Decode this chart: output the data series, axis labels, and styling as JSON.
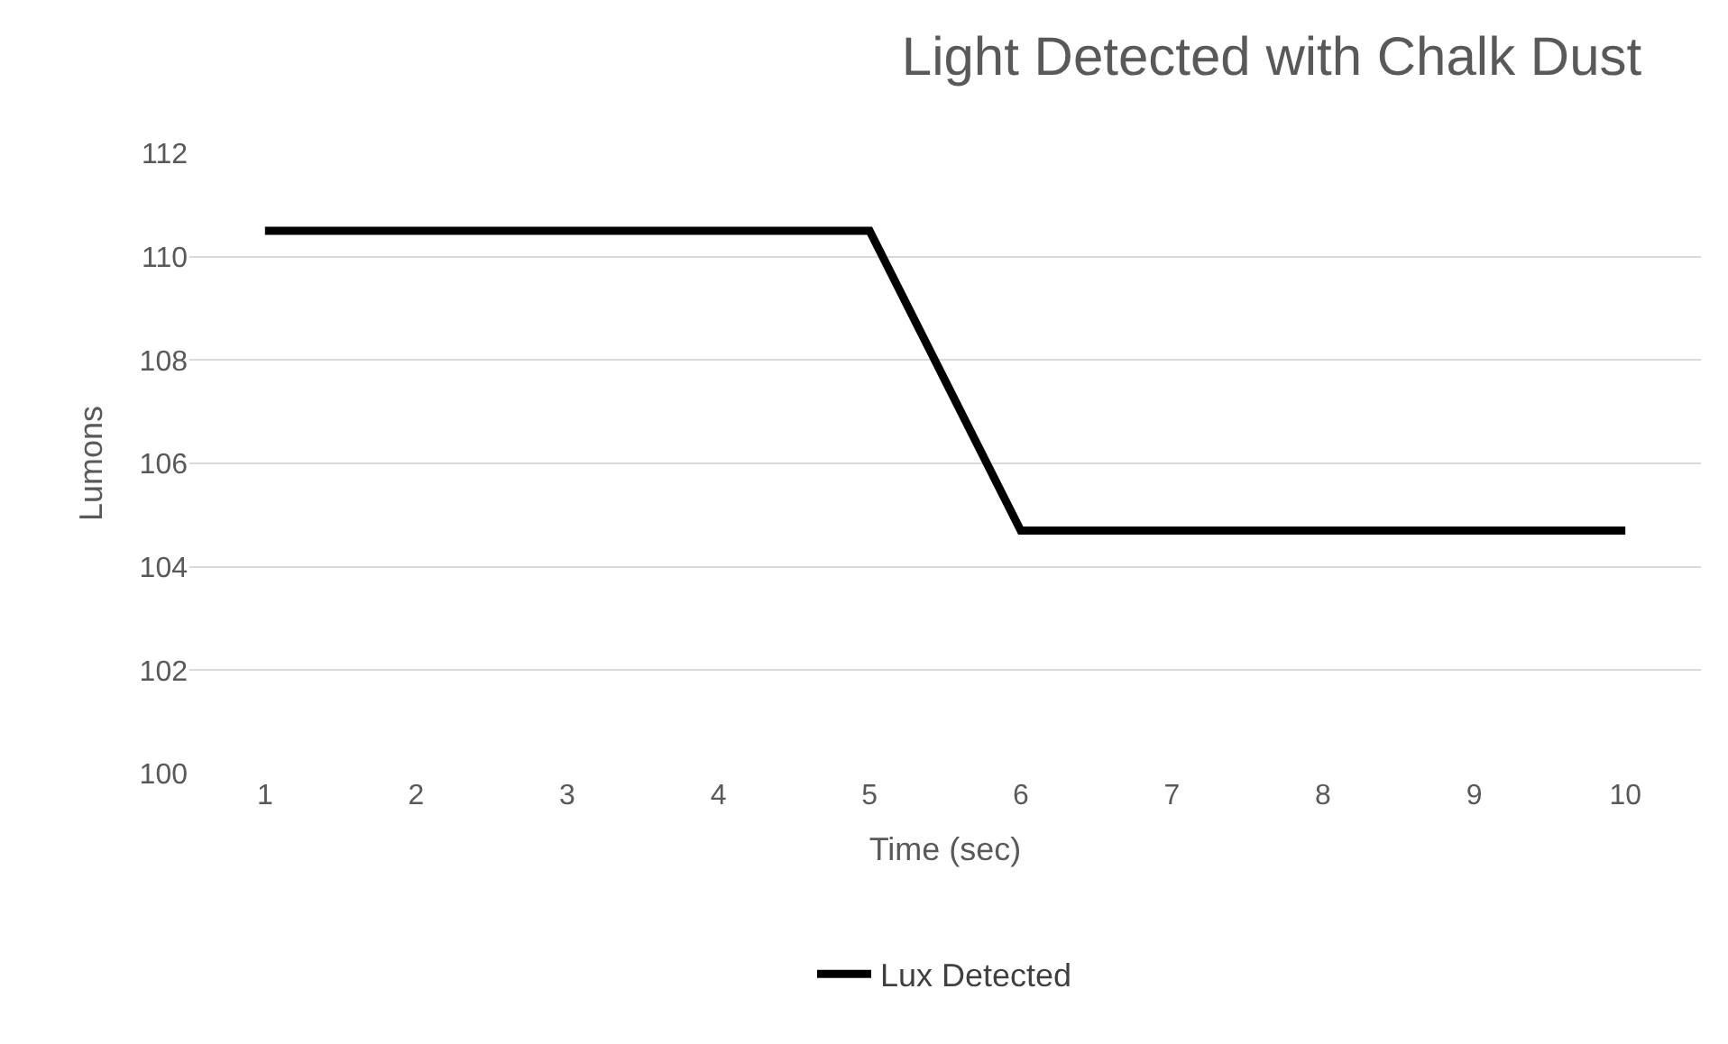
{
  "chart_data": {
    "type": "line",
    "title": "Light Detected with Chalk Dust",
    "xlabel": "Time (sec)",
    "ylabel": "Lumons",
    "categories": [
      "1",
      "2",
      "3",
      "4",
      "5",
      "6",
      "7",
      "8",
      "9",
      "10"
    ],
    "series": [
      {
        "name": "Lux Detected",
        "color": "#000000",
        "values": [
          110.5,
          110.5,
          110.5,
          110.5,
          110.5,
          104.7,
          104.7,
          104.7,
          104.7,
          104.7
        ]
      }
    ],
    "ylim": [
      100,
      112
    ],
    "yticks": [
      100,
      102,
      104,
      106,
      108,
      110,
      112
    ],
    "grid": "y",
    "legend": "bottom",
    "marker": "none",
    "line_style": "solid"
  }
}
